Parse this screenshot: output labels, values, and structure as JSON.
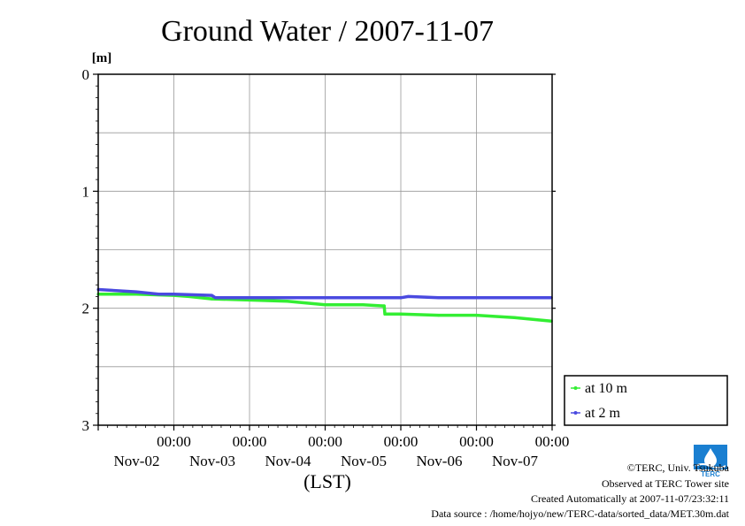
{
  "title": "Ground Water / 2007-11-07",
  "footer": {
    "copyright": "©TERC, Univ. Tsukuba",
    "observed": "Observed at TERC Tower site",
    "created": "Created Automatically at 2007-11-07/23:32:11",
    "source": "Data source : /home/hojyo/new/TERC-data/sorted_data/MET.30m.dat"
  },
  "logo": {
    "text": "TERC",
    "color": "#1a7fd1"
  },
  "chart_data": {
    "type": "line",
    "title": "Ground Water / 2007-11-07",
    "xlabel": "(LST)",
    "ylabel": "[m]",
    "ylim": [
      0,
      3
    ],
    "y_inverted": true,
    "y_ticks": [
      {
        "value": 0,
        "label": "0"
      },
      {
        "value": 1,
        "label": "1"
      },
      {
        "value": 2,
        "label": "2"
      },
      {
        "value": 3,
        "label": "3"
      }
    ],
    "y_gridlines": [
      0.5,
      1,
      1.5,
      2,
      2.5
    ],
    "x_range_days": [
      0,
      6
    ],
    "x_ticks": [
      {
        "day": 1,
        "time": "00:00",
        "date": "Nov-02"
      },
      {
        "day": 2,
        "time": "00:00",
        "date": "Nov-03"
      },
      {
        "day": 3,
        "time": "00:00",
        "date": "Nov-04"
      },
      {
        "day": 4,
        "time": "00:00",
        "date": "Nov-05"
      },
      {
        "day": 5,
        "time": "00:00",
        "date": "Nov-06"
      },
      {
        "day": 6,
        "time": "00:00",
        "date": "Nov-07"
      }
    ],
    "grid": true,
    "legend_position": "bottom-right, outside plot",
    "series": [
      {
        "name": "at 10 m",
        "color": "#33ee33",
        "points": [
          [
            0,
            1.88
          ],
          [
            0.5,
            1.88
          ],
          [
            1.0,
            1.89
          ],
          [
            1.2,
            1.9
          ],
          [
            1.5,
            1.92
          ],
          [
            2.0,
            1.93
          ],
          [
            2.5,
            1.94
          ],
          [
            3.0,
            1.97
          ],
          [
            3.5,
            1.97
          ],
          [
            3.75,
            1.98
          ],
          [
            3.78,
            1.98
          ],
          [
            3.79,
            2.05
          ],
          [
            4.0,
            2.05
          ],
          [
            4.5,
            2.06
          ],
          [
            5.0,
            2.06
          ],
          [
            5.5,
            2.08
          ],
          [
            5.99,
            2.11
          ]
        ]
      },
      {
        "name": "at 2 m",
        "color": "#4a4ae0",
        "points": [
          [
            0,
            1.84
          ],
          [
            0.5,
            1.86
          ],
          [
            0.8,
            1.88
          ],
          [
            1.0,
            1.88
          ],
          [
            1.5,
            1.89
          ],
          [
            1.55,
            1.91
          ],
          [
            2.0,
            1.91
          ],
          [
            2.5,
            1.91
          ],
          [
            3.0,
            1.91
          ],
          [
            3.5,
            1.91
          ],
          [
            4.0,
            1.91
          ],
          [
            4.1,
            1.9
          ],
          [
            4.5,
            1.91
          ],
          [
            5.0,
            1.91
          ],
          [
            5.5,
            1.91
          ],
          [
            5.99,
            1.91
          ]
        ]
      }
    ]
  }
}
